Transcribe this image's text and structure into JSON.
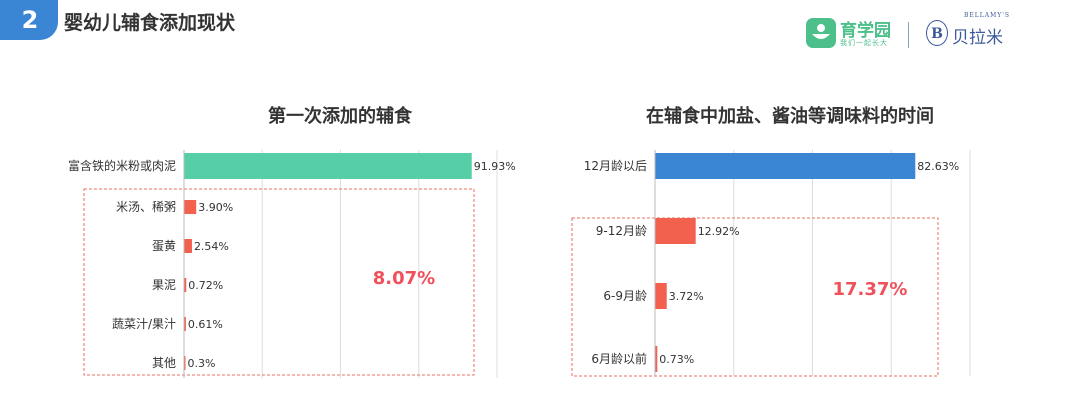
{
  "header": {
    "section_number": "2",
    "title": "婴幼儿辅食添加现状",
    "logo_primary": {
      "name": "育学园",
      "slogan": "我们一起长大"
    },
    "logo_secondary": {
      "mark": "B",
      "name_cn": "贝拉米",
      "name_en": "BELLAMY'S"
    }
  },
  "colors": {
    "highlight_left": "#56cfa8",
    "highlight_right": "#3a86d4",
    "bar": "#f2604e",
    "group_box": "#e8705c",
    "group_label": "#f0505a",
    "gridline": "#dddddd"
  },
  "chart_data": [
    {
      "type": "bar",
      "orientation": "horizontal",
      "title": "第一次添加的辅食",
      "categories": [
        "富含铁的米粉或肉泥",
        "米汤、稀粥",
        "蛋黄",
        "果泥",
        "蔬菜汁/果汁",
        "其他"
      ],
      "values": [
        91.93,
        3.9,
        2.54,
        0.72,
        0.61,
        0.3
      ],
      "value_labels": [
        "91.93%",
        "3.90%",
        "2.54%",
        "0.72%",
        "0.61%",
        "0.3%"
      ],
      "xlim": [
        0,
        100
      ],
      "grid": true,
      "group_annotation": {
        "label": "8.07%",
        "covers": [
          "米汤、稀粥",
          "蛋黄",
          "果泥",
          "蔬菜汁/果汁",
          "其他"
        ]
      }
    },
    {
      "type": "bar",
      "orientation": "horizontal",
      "title": "在辅食中加盐、酱油等调味料的时间",
      "categories": [
        "12月龄以后",
        "9-12月龄",
        "6-9月龄",
        "6月龄以前"
      ],
      "values": [
        82.63,
        12.92,
        3.72,
        0.73
      ],
      "value_labels": [
        "82.63%",
        "12.92%",
        "3.72%",
        "0.73%"
      ],
      "xlim": [
        0,
        100
      ],
      "grid": true,
      "group_annotation": {
        "label": "17.37%",
        "covers": [
          "9-12月龄",
          "6-9月龄",
          "6月龄以前"
        ]
      }
    }
  ]
}
